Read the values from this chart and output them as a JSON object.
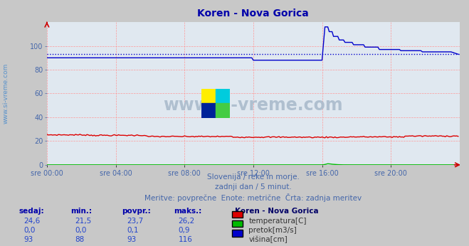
{
  "title": "Koren - Nova Gorica",
  "title_color": "#0000aa",
  "bg_color": "#c8c8c8",
  "plot_bg_color": "#e0e8f0",
  "grid_color": "#ff9999",
  "sidebar_text": "www.si-vreme.com",
  "sidebar_color": "#4488cc",
  "watermark_text": "www.si-vreme.com",
  "watermark_color": "#aabbcc",
  "xlabel_color": "#4466aa",
  "ylabel_color": "#4466aa",
  "ylim": [
    0,
    120
  ],
  "xlim": [
    0,
    288
  ],
  "ytick_vals": [
    0,
    20,
    40,
    60,
    80,
    100
  ],
  "xtick_positions": [
    0,
    48,
    96,
    144,
    192,
    240
  ],
  "xtick_labels": [
    "sre 00:00",
    "sre 04:00",
    "sre 08:00",
    "sre 12:00",
    "sre 16:00",
    "sre 20:00"
  ],
  "temp_color": "#dd0000",
  "flow_color": "#00bb00",
  "height_color": "#0000cc",
  "avg_color": "#0000cc",
  "arrow_color": "#cc0000",
  "subtitle1": "Slovenija / reke in morje.",
  "subtitle2": "zadnji dan / 5 minut.",
  "subtitle3": "Meritve: povprečne  Enote: metrične  Črta: zadnja meritev",
  "legend_title": "Koren - Nova Gorica",
  "col_headers": [
    "sedaj:",
    "min.:",
    "povpr.:",
    "maks.:"
  ],
  "legend_rows": [
    {
      "sedaj": "24,6",
      "min": "21,5",
      "povpr": "23,7",
      "maks": "26,2",
      "label": "temperatura[C]",
      "color": "#dd0000"
    },
    {
      "sedaj": "0,0",
      "min": "0,0",
      "povpr": "0,1",
      "maks": "0,9",
      "label": "pretok[m3/s]",
      "color": "#00bb00"
    },
    {
      "sedaj": "93",
      "min": "88",
      "povpr": "93",
      "maks": "116",
      "label": "višina[cm]",
      "color": "#0000cc"
    }
  ],
  "avg_height": 93.0,
  "n_points": 288,
  "spike_start": 192,
  "height_base_start": 90,
  "height_base_before_spike": 88,
  "height_spike_max": 116,
  "height_end": 93,
  "temp_base": 24.0,
  "temp_start": 25.5
}
